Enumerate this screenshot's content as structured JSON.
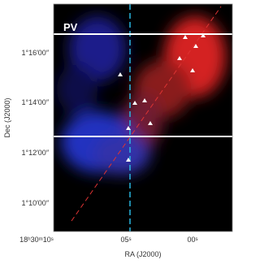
{
  "figure": {
    "label": "PV",
    "x_axis": {
      "title": "RA (J2000)",
      "ticks": [
        "18ʰ30ᵐ10ˢ",
        "05ˢ",
        "00ˢ"
      ]
    },
    "y_axis": {
      "title": "Dec (J2000)",
      "ticks": [
        "1°16′00″",
        "1°14′00″",
        "1°12′00″",
        "1°10′00″"
      ]
    }
  }
}
